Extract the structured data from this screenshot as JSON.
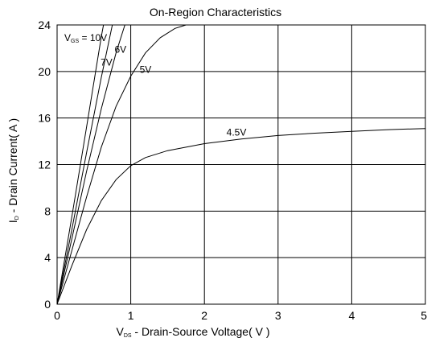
{
  "chart_data": {
    "type": "line",
    "title": "On-Region Characteristics",
    "xlabel": {
      "main": "V",
      "sub": "DS",
      "rest": " - Drain-Source Voltage( V )"
    },
    "ylabel": {
      "main": "I",
      "sub": "D",
      "rest": " - Drain Current( A )"
    },
    "xlim": [
      0,
      5
    ],
    "ylim": [
      0,
      24
    ],
    "x_ticks": [
      0,
      1,
      2,
      3,
      4,
      5
    ],
    "y_ticks": [
      0,
      4,
      8,
      12,
      16,
      20,
      24
    ],
    "grid": true,
    "gate_label_prefix": {
      "main": "V",
      "sub": "GS",
      "rest": " = "
    },
    "series": [
      {
        "name": "10V",
        "points": [
          [
            0,
            0
          ],
          [
            0.2,
            7.5
          ],
          [
            0.4,
            15.2
          ],
          [
            0.6,
            23
          ],
          [
            0.63,
            24
          ]
        ]
      },
      {
        "name": "7V",
        "points": [
          [
            0,
            0
          ],
          [
            0.2,
            6.4
          ],
          [
            0.4,
            13
          ],
          [
            0.6,
            19.5
          ],
          [
            0.75,
            24
          ]
        ]
      },
      {
        "name": "6V",
        "points": [
          [
            0,
            0
          ],
          [
            0.2,
            5.6
          ],
          [
            0.4,
            11.4
          ],
          [
            0.6,
            16.8
          ],
          [
            0.8,
            21.6
          ],
          [
            0.92,
            24
          ]
        ]
      },
      {
        "name": "5V",
        "points": [
          [
            0,
            0
          ],
          [
            0.2,
            4.6
          ],
          [
            0.4,
            9.2
          ],
          [
            0.6,
            13.5
          ],
          [
            0.8,
            17
          ],
          [
            1.0,
            19.6
          ],
          [
            1.2,
            21.6
          ],
          [
            1.4,
            22.9
          ],
          [
            1.6,
            23.7
          ],
          [
            1.75,
            24
          ]
        ]
      },
      {
        "name": "4.5V",
        "points": [
          [
            0,
            0
          ],
          [
            0.2,
            3.3
          ],
          [
            0.4,
            6.4
          ],
          [
            0.6,
            8.9
          ],
          [
            0.8,
            10.7
          ],
          [
            1.0,
            11.9
          ],
          [
            1.2,
            12.6
          ],
          [
            1.5,
            13.2
          ],
          [
            2.0,
            13.8
          ],
          [
            2.5,
            14.2
          ],
          [
            3.0,
            14.5
          ],
          [
            3.5,
            14.7
          ],
          [
            4.0,
            14.85
          ],
          [
            4.5,
            15.0
          ],
          [
            5.0,
            15.1
          ]
        ]
      }
    ],
    "labels": [
      {
        "series": "10V",
        "text": "10V",
        "x": 0.47,
        "y": 22.6
      },
      {
        "series": "7V",
        "text": "7V",
        "x": 0.59,
        "y": 20.5
      },
      {
        "series": "6V",
        "text": "6V",
        "x": 0.78,
        "y": 21.6
      },
      {
        "series": "5V",
        "text": "5V",
        "x": 1.12,
        "y": 19.9
      },
      {
        "series": "4.5V",
        "text": "4.5V",
        "x": 2.3,
        "y": 14.5
      }
    ]
  },
  "colors": {
    "line": "#000000",
    "grid": "#000000",
    "background": "#ffffff"
  }
}
